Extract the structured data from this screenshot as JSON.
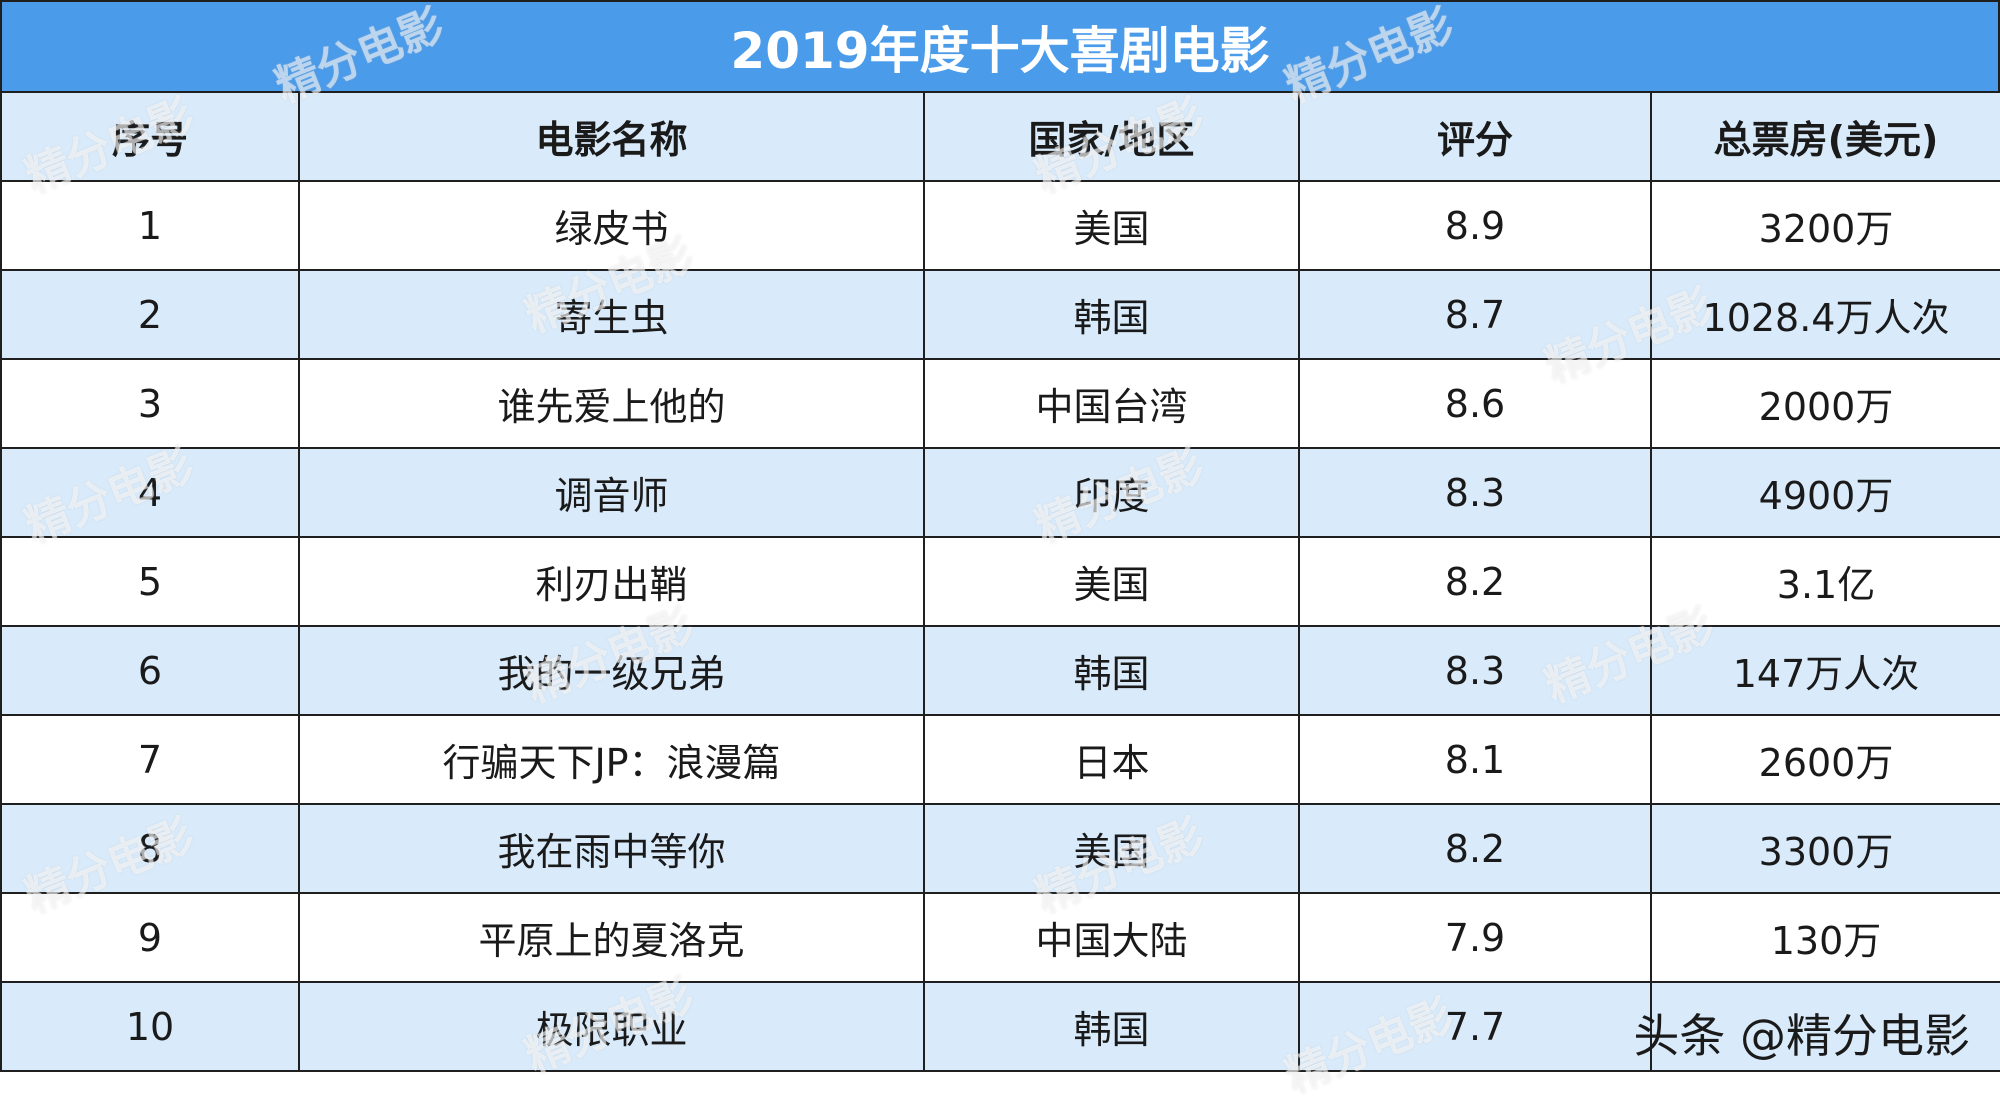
{
  "chart_data": {
    "type": "table",
    "title": "2019年度十大喜剧电影",
    "columns": [
      "序号",
      "电影名称",
      "国家/地区",
      "评分",
      "总票房(美元)"
    ],
    "rows": [
      [
        "1",
        "绿皮书",
        "美国",
        "8.9",
        "3200万"
      ],
      [
        "2",
        "寄生虫",
        "韩国",
        "8.7",
        "1028.4万人次"
      ],
      [
        "3",
        "谁先爱上他的",
        "中国台湾",
        "8.6",
        "2000万"
      ],
      [
        "4",
        "调音师",
        "印度",
        "8.3",
        "4900万"
      ],
      [
        "5",
        "利刃出鞘",
        "美国",
        "8.2",
        "3.1亿"
      ],
      [
        "6",
        "我的一级兄弟",
        "韩国",
        "8.3",
        "147万人次"
      ],
      [
        "7",
        "行骗天下JP：浪漫篇",
        "日本",
        "8.1",
        "2600万"
      ],
      [
        "8",
        "我在雨中等你",
        "美国",
        "8.2",
        "3300万"
      ],
      [
        "9",
        "平原上的夏洛克",
        "中国大陆",
        "7.9",
        "130万"
      ],
      [
        "10",
        "极限职业",
        "韩国",
        "7.7",
        ""
      ]
    ]
  },
  "watermark": "精分电影",
  "credit": "头条 @精分电影",
  "colors": {
    "title_bg": "#4a9bea",
    "title_text": "#ffffff",
    "row_alt_bg": "#d9ebfb",
    "row_bg": "#ffffff",
    "border": "#1f1f1f"
  }
}
